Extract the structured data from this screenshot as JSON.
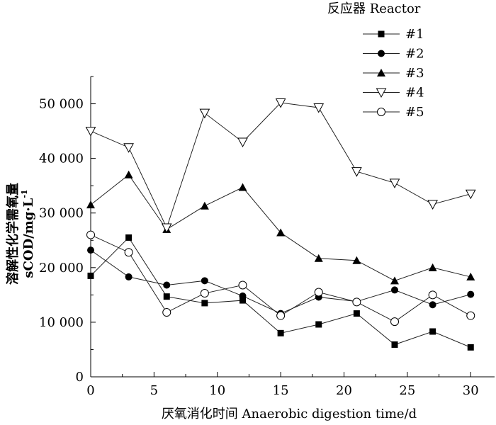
{
  "chart_data": {
    "type": "line",
    "title": "",
    "xlabel": "厌氧消化时间 Anaerobic digestion time/d",
    "ylabel_line1": "溶解性化学需氧量",
    "ylabel_line2": "sCOD/mg·L",
    "ylabel_superscript": "-1",
    "xlim": [
      0,
      32
    ],
    "ylim": [
      0,
      55000
    ],
    "xticks": [
      0,
      5,
      10,
      15,
      20,
      25,
      30
    ],
    "xtick_labels": [
      "0",
      "5",
      "10",
      "15",
      "20",
      "25",
      "30"
    ],
    "yticks": [
      0,
      10000,
      20000,
      30000,
      40000,
      50000
    ],
    "ytick_labels": [
      "0",
      "10 000",
      "20 000",
      "30 000",
      "40 000",
      "50 000"
    ],
    "grid": false,
    "legend_title": "反应器 Reactor",
    "legend_position": "top-right",
    "x": [
      0,
      3,
      6,
      9,
      12,
      15,
      18,
      21,
      24,
      27,
      30
    ],
    "series": [
      {
        "name": "#1",
        "marker": "square-filled",
        "values": [
          18500,
          25500,
          14700,
          13500,
          14000,
          8000,
          9600,
          11600,
          5900,
          8300,
          5400
        ]
      },
      {
        "name": "#2",
        "marker": "circle-filled",
        "values": [
          23200,
          18300,
          16800,
          17600,
          14800,
          11600,
          14600,
          13800,
          15900,
          13200,
          15100
        ]
      },
      {
        "name": "#3",
        "marker": "triangle-up-filled",
        "values": [
          31500,
          37000,
          27000,
          31300,
          34700,
          26400,
          21700,
          21300,
          17600,
          20000,
          18300
        ]
      },
      {
        "name": "#4",
        "marker": "triangle-down-open",
        "values": [
          45000,
          42000,
          27300,
          48300,
          43000,
          50200,
          49300,
          37600,
          35500,
          31600,
          33500
        ]
      },
      {
        "name": "#5",
        "marker": "circle-open",
        "values": [
          26000,
          22800,
          11800,
          15300,
          16800,
          11200,
          15500,
          13700,
          10100,
          15000,
          11200
        ]
      }
    ]
  }
}
